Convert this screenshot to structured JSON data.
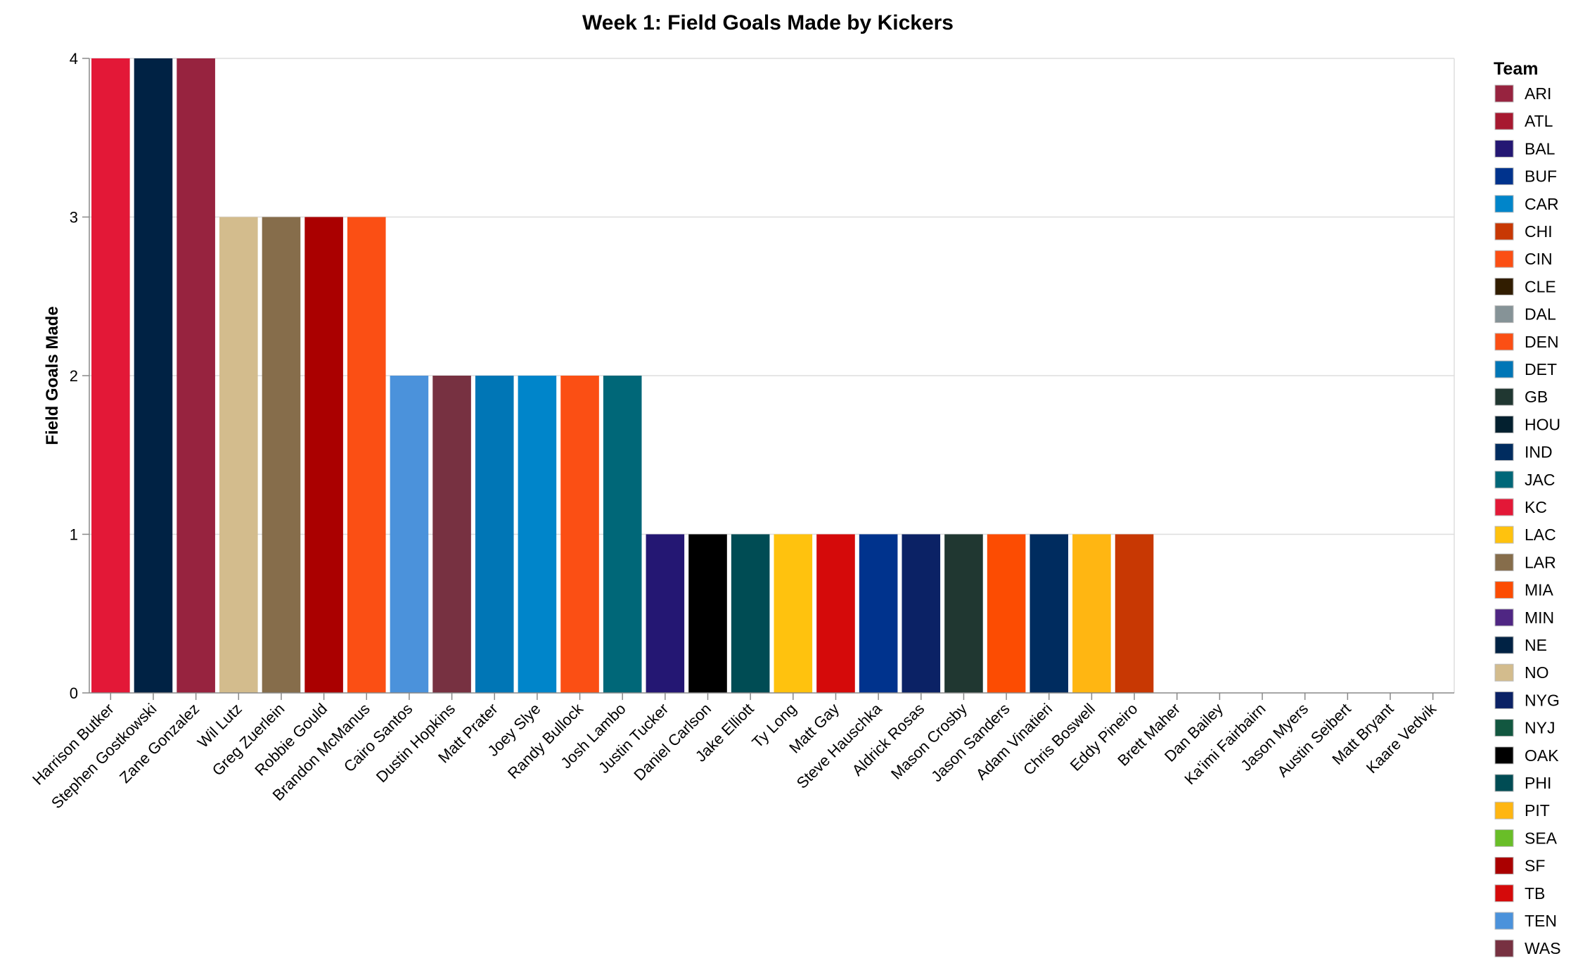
{
  "chart_data": {
    "type": "bar",
    "title": "Week 1: Field Goals Made by Kickers",
    "xlabel": "",
    "ylabel": "Field Goals Made",
    "ylim": [
      0,
      4
    ],
    "yticks": [
      0,
      1,
      2,
      3,
      4
    ],
    "grid": true,
    "legend": {
      "title": "Team",
      "placement": "right",
      "entries": [
        {
          "team": "ARI",
          "color": "#97233F"
        },
        {
          "team": "ATL",
          "color": "#A71930"
        },
        {
          "team": "BAL",
          "color": "#241773"
        },
        {
          "team": "BUF",
          "color": "#00338D"
        },
        {
          "team": "CAR",
          "color": "#0085CA"
        },
        {
          "team": "CHI",
          "color": "#C83803"
        },
        {
          "team": "CIN",
          "color": "#FB4F14"
        },
        {
          "team": "CLE",
          "color": "#311D00"
        },
        {
          "team": "DAL",
          "color": "#869397"
        },
        {
          "team": "DEN",
          "color": "#FB4F14"
        },
        {
          "team": "DET",
          "color": "#0076B6"
        },
        {
          "team": "GB",
          "color": "#203731"
        },
        {
          "team": "HOU",
          "color": "#03202F"
        },
        {
          "team": "IND",
          "color": "#002C5F"
        },
        {
          "team": "JAC",
          "color": "#006778"
        },
        {
          "team": "KC",
          "color": "#E31837"
        },
        {
          "team": "LAC",
          "color": "#FFC20E"
        },
        {
          "team": "LAR",
          "color": "#866D4B"
        },
        {
          "team": "MIA",
          "color": "#FC4C02"
        },
        {
          "team": "MIN",
          "color": "#4F2683"
        },
        {
          "team": "NE",
          "color": "#002244"
        },
        {
          "team": "NO",
          "color": "#D3BC8D"
        },
        {
          "team": "NYG",
          "color": "#0B2265"
        },
        {
          "team": "NYJ",
          "color": "#125740"
        },
        {
          "team": "OAK",
          "color": "#000000"
        },
        {
          "team": "PHI",
          "color": "#004C54"
        },
        {
          "team": "PIT",
          "color": "#FFB612"
        },
        {
          "team": "SEA",
          "color": "#69BE28"
        },
        {
          "team": "SF",
          "color": "#AA0000"
        },
        {
          "team": "TB",
          "color": "#D50A0A"
        },
        {
          "team": "TEN",
          "color": "#4B92DB"
        },
        {
          "team": "WAS",
          "color": "#773141"
        }
      ]
    },
    "bars": [
      {
        "kicker": "Harrison Butker",
        "value": 4,
        "color": "#E31837"
      },
      {
        "kicker": "Stephen Gostkowski",
        "value": 4,
        "color": "#002244"
      },
      {
        "kicker": "Zane Gonzalez",
        "value": 4,
        "color": "#97233F"
      },
      {
        "kicker": "Wil Lutz",
        "value": 3,
        "color": "#D3BC8D"
      },
      {
        "kicker": "Greg Zuerlein",
        "value": 3,
        "color": "#866D4B"
      },
      {
        "kicker": "Robbie Gould",
        "value": 3,
        "color": "#AA0000"
      },
      {
        "kicker": "Brandon McManus",
        "value": 3,
        "color": "#FB4F14"
      },
      {
        "kicker": "Cairo Santos",
        "value": 2,
        "color": "#4B92DB"
      },
      {
        "kicker": "Dustin Hopkins",
        "value": 2,
        "color": "#773141"
      },
      {
        "kicker": "Matt Prater",
        "value": 2,
        "color": "#0076B6"
      },
      {
        "kicker": "Joey Slye",
        "value": 2,
        "color": "#0085CA"
      },
      {
        "kicker": "Randy Bullock",
        "value": 2,
        "color": "#FB4F14"
      },
      {
        "kicker": "Josh Lambo",
        "value": 2,
        "color": "#006778"
      },
      {
        "kicker": "Justin Tucker",
        "value": 1,
        "color": "#241773"
      },
      {
        "kicker": "Daniel Carlson",
        "value": 1,
        "color": "#000000"
      },
      {
        "kicker": "Jake Elliott",
        "value": 1,
        "color": "#004C54"
      },
      {
        "kicker": "Ty Long",
        "value": 1,
        "color": "#FFC20E"
      },
      {
        "kicker": "Matt Gay",
        "value": 1,
        "color": "#D50A0A"
      },
      {
        "kicker": "Steve Hauschka",
        "value": 1,
        "color": "#00338D"
      },
      {
        "kicker": "Aldrick Rosas",
        "value": 1,
        "color": "#0B2265"
      },
      {
        "kicker": "Mason Crosby",
        "value": 1,
        "color": "#203731"
      },
      {
        "kicker": "Jason Sanders",
        "value": 1,
        "color": "#FC4C02"
      },
      {
        "kicker": "Adam Vinatieri",
        "value": 1,
        "color": "#002C5F"
      },
      {
        "kicker": "Chris Boswell",
        "value": 1,
        "color": "#FFB612"
      },
      {
        "kicker": "Eddy Pineiro",
        "value": 1,
        "color": "#C83803"
      },
      {
        "kicker": "Brett Maher",
        "value": 0,
        "color": "#869397"
      },
      {
        "kicker": "Dan Bailey",
        "value": 0,
        "color": "#4F2683"
      },
      {
        "kicker": "Ka'imi Fairbairn",
        "value": 0,
        "color": "#03202F"
      },
      {
        "kicker": "Jason Myers",
        "value": 0,
        "color": "#69BE28"
      },
      {
        "kicker": "Austin Seibert",
        "value": 0,
        "color": "#311D00"
      },
      {
        "kicker": "Matt Bryant",
        "value": 0,
        "color": "#A71930"
      },
      {
        "kicker": "Kaare Vedvik",
        "value": 0,
        "color": "#125740"
      }
    ]
  }
}
